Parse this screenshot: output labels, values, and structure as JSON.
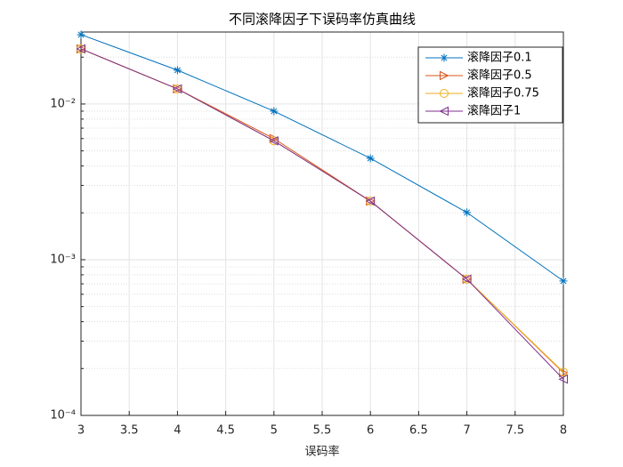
{
  "chart_data": {
    "type": "line",
    "title": "不同滚降因子下误码率仿真曲线",
    "x_label": "误码率",
    "x": [
      3,
      4,
      5,
      6,
      7,
      8
    ],
    "series": [
      {
        "name": "滚降因子0.1",
        "color": "#0072BD",
        "marker": "star",
        "values": [
          0.0279,
          0.0165,
          0.009,
          0.00448,
          0.00201,
          0.00073
        ]
      },
      {
        "name": "滚降因子0.5",
        "color": "#D95319",
        "marker": "triangle-right",
        "values": [
          0.0226,
          0.0125,
          0.006,
          0.00238,
          0.00075,
          0.000188
        ]
      },
      {
        "name": "滚降因子0.75",
        "color": "#EDB120",
        "marker": "circle",
        "values": [
          0.0226,
          0.0125,
          0.0058,
          0.00238,
          0.00075,
          0.00019
        ]
      },
      {
        "name": "滚降因子1",
        "color": "#7E2F8E",
        "marker": "triangle-left",
        "values": [
          0.0226,
          0.0125,
          0.0058,
          0.00238,
          0.00075,
          0.000171
        ]
      }
    ],
    "xlim": [
      3,
      8
    ],
    "xticks": [
      3,
      3.5,
      4,
      4.5,
      5,
      5.5,
      6,
      6.5,
      7,
      7.5,
      8
    ],
    "ylim": [
      0.0001,
      0.029
    ],
    "ylog": true,
    "yticks": [
      {
        "value": 0.0001,
        "label": "10⁻⁴"
      },
      {
        "value": 0.001,
        "label": "10⁻³"
      },
      {
        "value": 0.01,
        "label": "10⁻²"
      }
    ],
    "yminorticks": [
      0.0002,
      0.0003,
      0.0004,
      0.0005,
      0.0006,
      0.0007,
      0.0008,
      0.0009,
      0.002,
      0.003,
      0.004,
      0.005,
      0.006,
      0.007,
      0.008,
      0.009,
      0.02
    ],
    "grid": true,
    "legend_position": "upper-right"
  }
}
